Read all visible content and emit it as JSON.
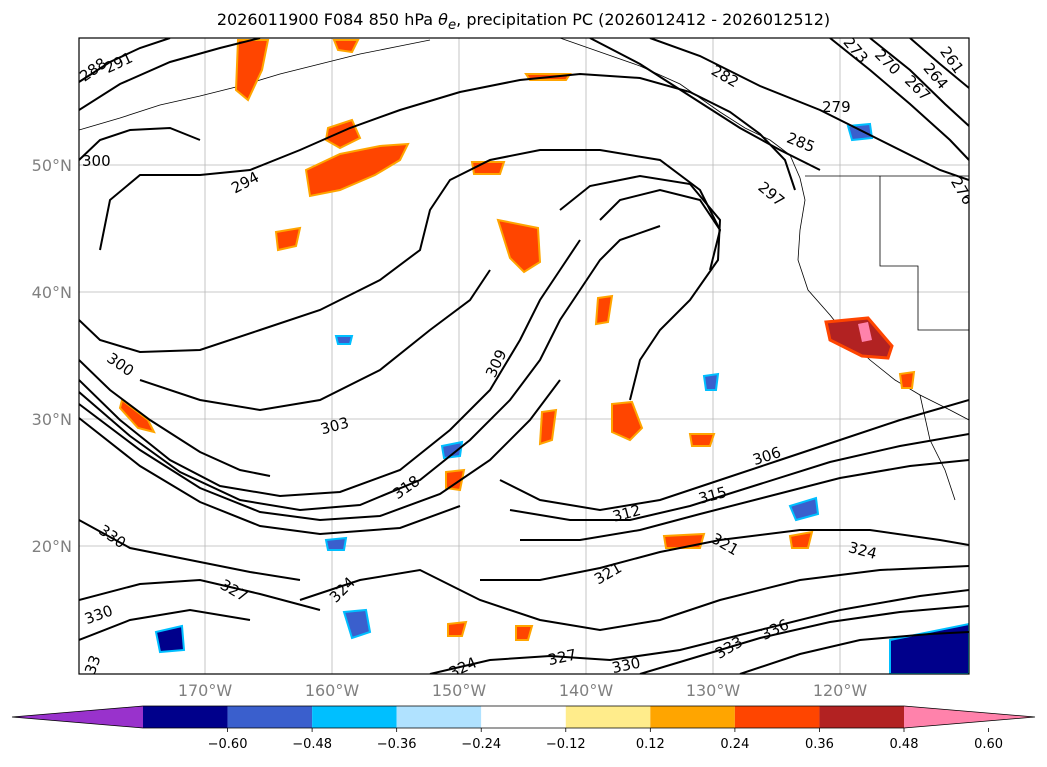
{
  "title": {
    "prefix": "2026011900 F084 850 hPa ",
    "theta_symbol": "θ",
    "theta_subscript": "e",
    "suffix": ", precipitation PC (2026012412 - 2026012512)"
  },
  "map": {
    "lat_labels": [
      "50°N",
      "40°N",
      "30°N",
      "20°N"
    ],
    "lon_labels": [
      "170°W",
      "160°W",
      "150°W",
      "140°W",
      "130°W",
      "120°W"
    ],
    "contour_labels": [
      "288",
      "291",
      "300",
      "294",
      "300",
      "309",
      "303",
      "318",
      "330",
      "324",
      "327",
      "330",
      "312",
      "315",
      "306",
      "321",
      "321",
      "324",
      "327",
      "333",
      "336",
      "330",
      "324",
      "285",
      "282",
      "279",
      "273",
      "270",
      "267",
      "264",
      "261",
      "297",
      "276",
      "33"
    ]
  },
  "colorbar": {
    "colors": [
      "#9932CC",
      "#00008B",
      "#3A5FCD",
      "#00BFFF",
      "#B0E2FF",
      "#FFFFFF",
      "#FFEC8B",
      "#FFA500",
      "#FF4500",
      "#B22222",
      "#FF82AB"
    ],
    "ticks": [
      "−0.60",
      "−0.48",
      "−0.36",
      "−0.24",
      "−0.12",
      "0.12",
      "0.24",
      "0.36",
      "0.48",
      "0.60"
    ]
  }
}
